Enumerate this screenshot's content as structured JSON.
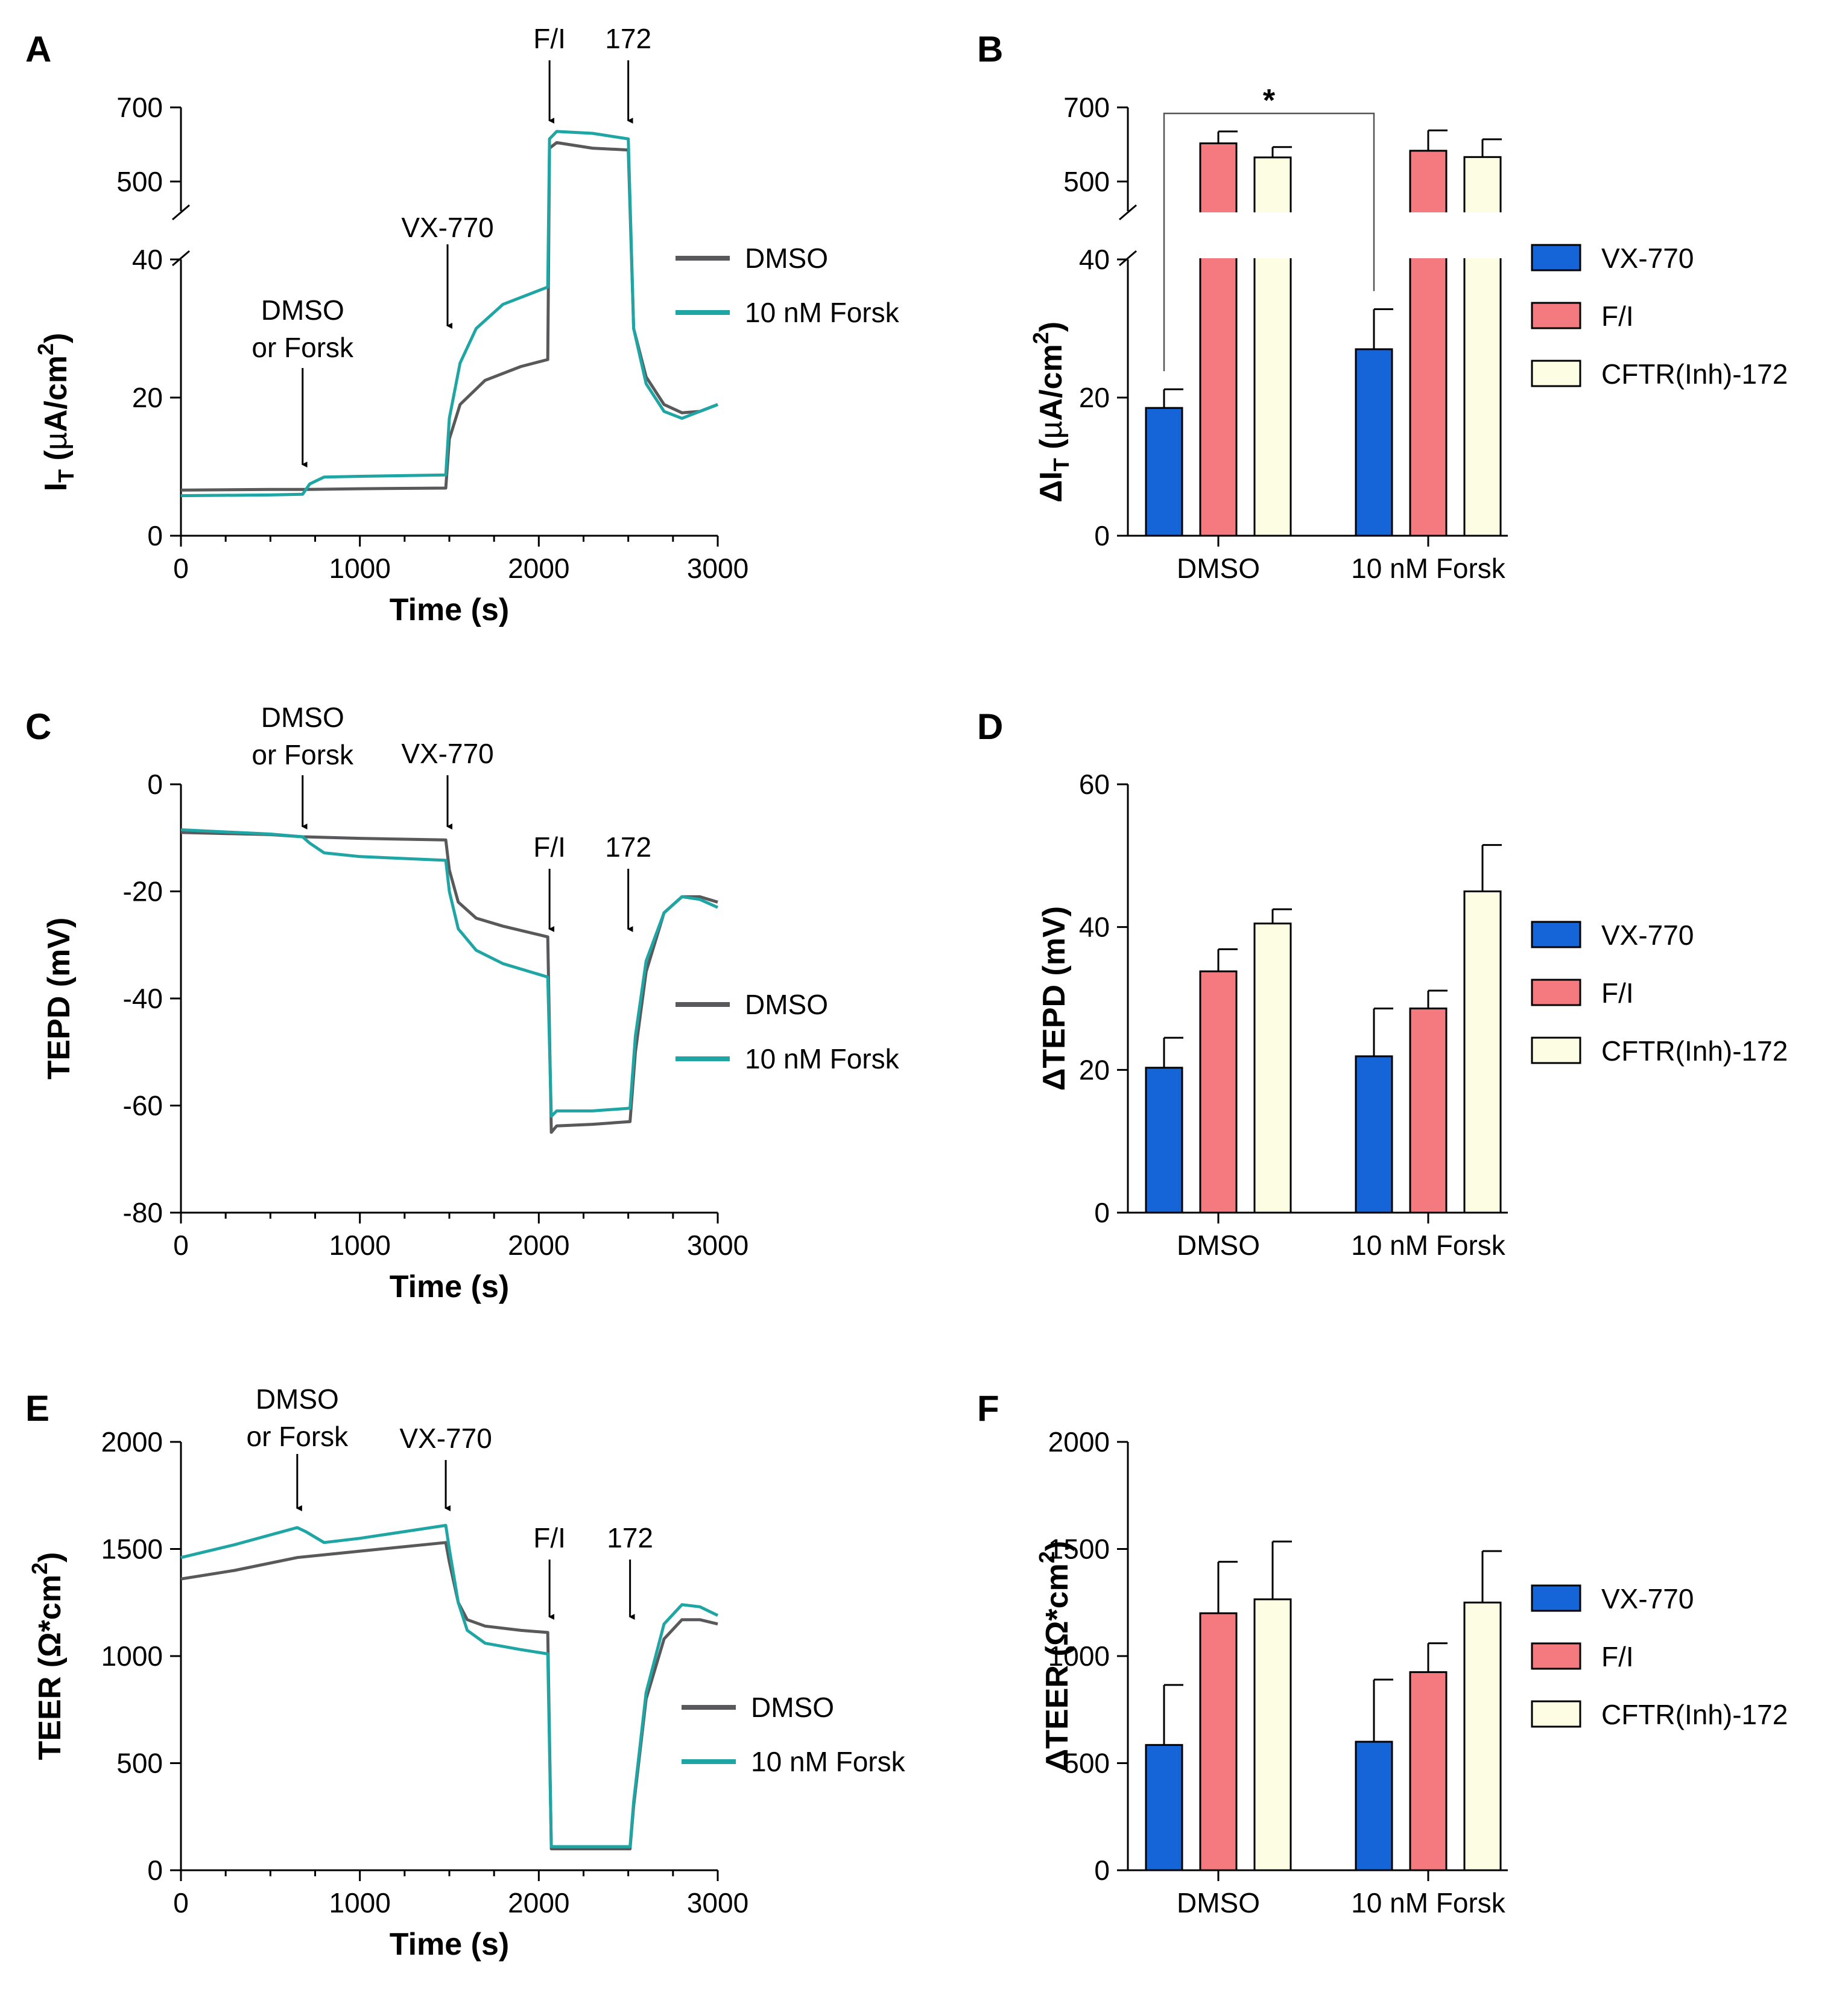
{
  "colors": {
    "dmso": "#59595b",
    "forsk": "#1fa6a4",
    "vx770": "#1565d8",
    "fi": "#f47a7f",
    "cftr": "#fdfde3"
  },
  "panel_letters": [
    "A",
    "B",
    "C",
    "D",
    "E",
    "F"
  ],
  "chart_data": [
    {
      "id": "A",
      "type": "line",
      "xlabel": "Time (s)",
      "ylabel": "IT (µA/cm2)",
      "xlim": [
        0,
        3000
      ],
      "xticks": [
        0,
        1000,
        2000,
        3000
      ],
      "ylim_lower": [
        0,
        40
      ],
      "ylim_upper": [
        420,
        700
      ],
      "yticks_lower": [
        0,
        20,
        40
      ],
      "yticks_upper": [
        500,
        700
      ],
      "annotations": [
        {
          "lines": [
            "DMSO",
            "or Forsk"
          ],
          "x": 680
        },
        {
          "lines": [
            "VX-770"
          ],
          "x": 1490
        },
        {
          "lines": [
            "F/I"
          ],
          "x": 2060
        },
        {
          "lines": [
            "172"
          ],
          "x": 2500
        }
      ],
      "series": [
        {
          "name": "DMSO",
          "x": [
            0,
            500,
            680,
            1000,
            1480,
            1500,
            1560,
            1700,
            1900,
            2050,
            2060,
            2100,
            2300,
            2500,
            2530,
            2600,
            2700,
            2800,
            2900,
            3000
          ],
          "y": [
            6.6,
            6.7,
            6.7,
            6.8,
            6.9,
            14,
            19,
            22.5,
            24.5,
            25.5,
            590,
            605,
            590,
            585,
            30,
            23,
            19,
            17.8,
            18,
            19
          ]
        },
        {
          "name": "10 nM Forsk",
          "x": [
            0,
            500,
            680,
            720,
            800,
            1000,
            1480,
            1500,
            1560,
            1650,
            1800,
            2050,
            2060,
            2100,
            2300,
            2500,
            2530,
            2600,
            2700,
            2800,
            2900,
            3000
          ],
          "y": [
            5.8,
            5.9,
            6.0,
            7.5,
            8.5,
            8.6,
            8.8,
            17,
            25,
            30,
            33.5,
            36,
            615,
            635,
            630,
            615,
            30,
            22,
            18,
            17,
            18,
            19
          ]
        }
      ],
      "legend": [
        "DMSO",
        "10 nM Forsk"
      ]
    },
    {
      "id": "B",
      "type": "bar",
      "ylabel": "ΔIT (µA/cm2)",
      "categories": [
        "DMSO",
        "10 nM Forsk"
      ],
      "ylim_lower": [
        0,
        40
      ],
      "ylim_upper": [
        420,
        700
      ],
      "yticks_lower": [
        0,
        20,
        40
      ],
      "yticks_upper": [
        500,
        700
      ],
      "significance": "*",
      "series": [
        {
          "name": "VX-770",
          "values": [
            18.5,
            27.0
          ],
          "errors": [
            2.7,
            5.8
          ]
        },
        {
          "name": "F/I",
          "values": [
            603,
            583
          ],
          "errors": [
            32,
            55
          ]
        },
        {
          "name": "CFTR(Inh)-172",
          "values": [
            565,
            566
          ],
          "errors": [
            28,
            48
          ]
        }
      ],
      "legend": [
        "VX-770",
        "F/I",
        "CFTR(Inh)-172"
      ]
    },
    {
      "id": "C",
      "type": "line",
      "xlabel": "Time (s)",
      "ylabel": "TEPD (mV)",
      "xlim": [
        0,
        3000
      ],
      "xticks": [
        0,
        1000,
        2000,
        3000
      ],
      "ylim": [
        -80,
        0
      ],
      "yticks": [
        -80,
        -60,
        -40,
        -20,
        0
      ],
      "annotations": [
        {
          "lines": [
            "DMSO",
            "or Forsk"
          ],
          "x": 680
        },
        {
          "lines": [
            "VX-770"
          ],
          "x": 1490
        },
        {
          "lines": [
            "F/I"
          ],
          "x": 2060
        },
        {
          "lines": [
            "172"
          ],
          "x": 2500
        }
      ],
      "series": [
        {
          "name": "DMSO",
          "x": [
            0,
            500,
            680,
            1000,
            1480,
            1500,
            1550,
            1650,
            1800,
            2050,
            2070,
            2100,
            2300,
            2510,
            2540,
            2600,
            2700,
            2800,
            2900,
            3000
          ],
          "y": [
            -9,
            -9.4,
            -9.8,
            -10.1,
            -10.4,
            -16,
            -22,
            -25,
            -26.5,
            -28.5,
            -65,
            -63.8,
            -63.5,
            -63,
            -50,
            -35,
            -24,
            -21,
            -21,
            -22
          ]
        },
        {
          "name": "10 nM Forsk",
          "x": [
            0,
            500,
            680,
            720,
            800,
            1000,
            1480,
            1500,
            1550,
            1650,
            1800,
            2050,
            2070,
            2100,
            2300,
            2510,
            2540,
            2600,
            2700,
            2800,
            2900,
            3000
          ],
          "y": [
            -8.5,
            -9.3,
            -9.8,
            -11,
            -12.8,
            -13.5,
            -14.2,
            -20,
            -27,
            -31,
            -33.5,
            -36,
            -62,
            -61,
            -61,
            -60.5,
            -47,
            -33,
            -24,
            -21,
            -21.5,
            -23
          ]
        }
      ],
      "legend": [
        "DMSO",
        "10 nM Forsk"
      ]
    },
    {
      "id": "D",
      "type": "bar",
      "ylabel": "ΔTEPD (mV)",
      "categories": [
        "DMSO",
        "10 nM Forsk"
      ],
      "ylim": [
        0,
        60
      ],
      "yticks": [
        0,
        20,
        40,
        60
      ],
      "series": [
        {
          "name": "VX-770",
          "values": [
            20.3,
            21.9
          ],
          "errors": [
            4.2,
            6.7
          ]
        },
        {
          "name": "F/I",
          "values": [
            33.8,
            28.6
          ],
          "errors": [
            3.1,
            2.5
          ]
        },
        {
          "name": "CFTR(Inh)-172",
          "values": [
            40.5,
            45.0
          ],
          "errors": [
            2.0,
            6.5
          ]
        }
      ],
      "legend": [
        "VX-770",
        "F/I",
        "CFTR(Inh)-172"
      ]
    },
    {
      "id": "E",
      "type": "line",
      "xlabel": "Time (s)",
      "ylabel": "TEER (Ω*cm2)",
      "xlim": [
        0,
        3000
      ],
      "xticks": [
        0,
        1000,
        2000,
        3000
      ],
      "ylim": [
        0,
        2000
      ],
      "yticks": [
        0,
        500,
        1000,
        1500,
        2000
      ],
      "annotations": [
        {
          "lines": [
            "DMSO",
            "or Forsk"
          ],
          "x": 650
        },
        {
          "lines": [
            "VX-770"
          ],
          "x": 1480
        },
        {
          "lines": [
            "F/I"
          ],
          "x": 2060
        },
        {
          "lines": [
            "172"
          ],
          "x": 2510
        }
      ],
      "series": [
        {
          "name": "DMSO",
          "x": [
            0,
            300,
            650,
            1000,
            1480,
            1500,
            1550,
            1600,
            1700,
            1900,
            2050,
            2070,
            2200,
            2510,
            2530,
            2600,
            2700,
            2800,
            2900,
            3000
          ],
          "y": [
            1360,
            1400,
            1460,
            1490,
            1530,
            1440,
            1250,
            1170,
            1140,
            1120,
            1110,
            100,
            100,
            100,
            300,
            800,
            1080,
            1170,
            1170,
            1150
          ]
        },
        {
          "name": "10 nM Forsk",
          "x": [
            0,
            300,
            650,
            700,
            800,
            1000,
            1480,
            1500,
            1550,
            1600,
            1700,
            1900,
            2050,
            2070,
            2200,
            2510,
            2530,
            2600,
            2700,
            2800,
            2900,
            3000
          ],
          "y": [
            1460,
            1520,
            1600,
            1580,
            1530,
            1550,
            1610,
            1500,
            1250,
            1120,
            1060,
            1030,
            1010,
            110,
            110,
            110,
            320,
            830,
            1150,
            1240,
            1230,
            1190
          ]
        }
      ],
      "legend": [
        "DMSO",
        "10 nM Forsk"
      ]
    },
    {
      "id": "F",
      "type": "bar",
      "ylabel": "ΔTEER (Ω*cm2)",
      "categories": [
        "DMSO",
        "10 nM Forsk"
      ],
      "ylim": [
        0,
        2000
      ],
      "yticks": [
        0,
        500,
        1000,
        1500,
        2000
      ],
      "series": [
        {
          "name": "VX-770",
          "values": [
            585,
            600
          ],
          "errors": [
            280,
            290
          ]
        },
        {
          "name": "F/I",
          "values": [
            1200,
            925
          ],
          "errors": [
            240,
            135
          ]
        },
        {
          "name": "CFTR(Inh)-172",
          "values": [
            1265,
            1250
          ],
          "errors": [
            270,
            240
          ]
        }
      ],
      "legend": [
        "VX-770",
        "F/I",
        "CFTR(Inh)-172"
      ]
    }
  ]
}
